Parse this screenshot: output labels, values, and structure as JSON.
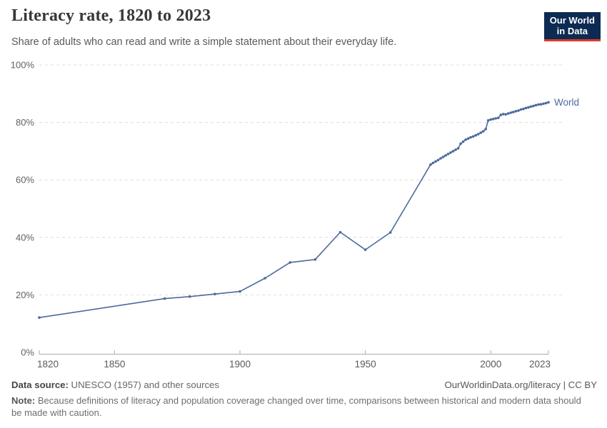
{
  "header": {
    "title": "Literacy rate, 1820 to 2023",
    "subtitle": "Share of adults who can read and write a simple statement about their everyday life.",
    "logo": {
      "line1": "Our World",
      "line2": "in Data",
      "bg_color": "#0d2b52",
      "accent_color": "#dc3b2b"
    }
  },
  "chart_data": {
    "type": "line",
    "title": "Literacy rate, 1820 to 2023",
    "xlabel": "",
    "ylabel": "",
    "xlim": [
      1820,
      2023
    ],
    "ylim": [
      0,
      100
    ],
    "grid": "horizontal-dashed",
    "legend_position": "end-of-line-label",
    "x_ticks": [
      {
        "value": 1820,
        "label": "1820"
      },
      {
        "value": 1850,
        "label": "1850"
      },
      {
        "value": 1900,
        "label": "1900"
      },
      {
        "value": 1950,
        "label": "1950"
      },
      {
        "value": 2000,
        "label": "2000"
      },
      {
        "value": 2023,
        "label": "2023"
      }
    ],
    "y_ticks": [
      {
        "value": 0,
        "label": "0%"
      },
      {
        "value": 20,
        "label": "20%"
      },
      {
        "value": 40,
        "label": "40%"
      },
      {
        "value": 60,
        "label": "60%"
      },
      {
        "value": 80,
        "label": "80%"
      },
      {
        "value": 100,
        "label": "100%"
      }
    ],
    "series": [
      {
        "name": "World",
        "color": "#4c6a9c",
        "points": [
          [
            1820,
            12.1
          ],
          [
            1870,
            18.7
          ],
          [
            1880,
            19.4
          ],
          [
            1890,
            20.3
          ],
          [
            1900,
            21.2
          ],
          [
            1910,
            25.8
          ],
          [
            1920,
            31.3
          ],
          [
            1930,
            32.3
          ],
          [
            1940,
            41.8
          ],
          [
            1950,
            35.7
          ],
          [
            1960,
            41.7
          ],
          [
            1976,
            65.3
          ],
          [
            1977,
            65.9
          ],
          [
            1978,
            66.4
          ],
          [
            1979,
            66.9
          ],
          [
            1980,
            67.5
          ],
          [
            1981,
            68.0
          ],
          [
            1982,
            68.5
          ],
          [
            1983,
            69.0
          ],
          [
            1984,
            69.5
          ],
          [
            1985,
            70.0
          ],
          [
            1986,
            70.5
          ],
          [
            1987,
            71.0
          ],
          [
            1988,
            72.6
          ],
          [
            1989,
            73.3
          ],
          [
            1990,
            74.0
          ],
          [
            1991,
            74.4
          ],
          [
            1992,
            74.8
          ],
          [
            1993,
            75.1
          ],
          [
            1994,
            75.5
          ],
          [
            1995,
            75.9
          ],
          [
            1996,
            76.4
          ],
          [
            1997,
            76.9
          ],
          [
            1998,
            77.7
          ],
          [
            1999,
            80.7
          ],
          [
            2000,
            81.0
          ],
          [
            2001,
            81.2
          ],
          [
            2002,
            81.4
          ],
          [
            2003,
            81.6
          ],
          [
            2004,
            82.6
          ],
          [
            2005,
            82.9
          ],
          [
            2006,
            82.8
          ],
          [
            2007,
            83.1
          ],
          [
            2008,
            83.4
          ],
          [
            2009,
            83.6
          ],
          [
            2010,
            83.9
          ],
          [
            2011,
            84.1
          ],
          [
            2012,
            84.5
          ],
          [
            2013,
            84.7
          ],
          [
            2014,
            85.0
          ],
          [
            2015,
            85.2
          ],
          [
            2016,
            85.5
          ],
          [
            2017,
            85.7
          ],
          [
            2018,
            86.0
          ],
          [
            2019,
            86.2
          ],
          [
            2020,
            86.3
          ],
          [
            2021,
            86.5
          ],
          [
            2022,
            86.7
          ],
          [
            2023,
            87.0
          ]
        ]
      }
    ]
  },
  "footer": {
    "source_label": "Data source:",
    "source_text": " UNESCO (1957) and other sources",
    "link": "OurWorldinData.org/literacy | CC BY",
    "note_label": "Note:",
    "note_text": " Because definitions of literacy and population coverage changed over time, comparisons between historical and modern data should be made with caution."
  }
}
